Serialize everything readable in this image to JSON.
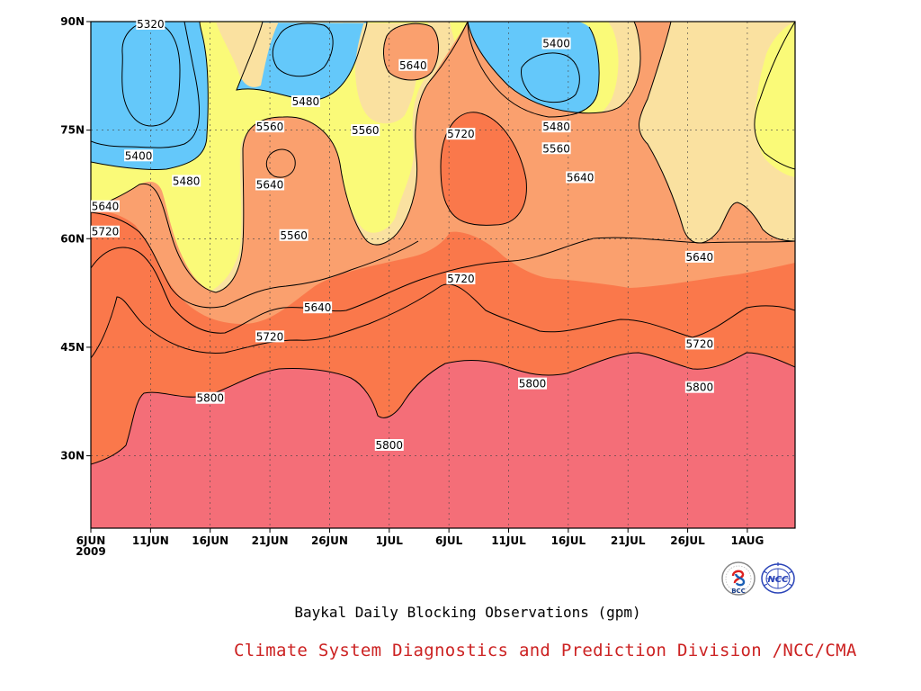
{
  "chart_data": {
    "type": "heatmap",
    "title": "Baykal Daily Blocking Observations (gpm)",
    "x_axis": {
      "tick_labels": [
        "6JUN",
        "11JUN",
        "16JUN",
        "21JUN",
        "26JUN",
        "1JUL",
        "6JUL",
        "11JUL",
        "16JUL",
        "21JUL",
        "26JUL",
        "1AUG"
      ],
      "year_label": "2009",
      "range": [
        "2009-06-06",
        "2009-08-04"
      ]
    },
    "y_axis": {
      "tick_labels": [
        "30N",
        "45N",
        "60N",
        "75N",
        "90N"
      ],
      "tick_values": [
        30,
        45,
        60,
        75,
        90
      ],
      "range": [
        20,
        90
      ]
    },
    "contour_levels": [
      5320,
      5400,
      5480,
      5560,
      5640,
      5720,
      5800
    ],
    "band_colors": {
      "below_5320": "#4646e6",
      "5320_5400": "#5a91de",
      "5400_5480": "#64c8fa",
      "5480_5560": "#fafa78",
      "5560_5640": "#fae1a0",
      "5640_5720": "#faa06e",
      "5720_5800": "#fa784b",
      "above_5800": "#f46e78"
    },
    "contour_labels": [
      {
        "text": "5320",
        "date": "2009-06-11",
        "lat": 90
      },
      {
        "text": "5400",
        "date": "2009-06-10",
        "lat": 71.5
      },
      {
        "text": "5480",
        "date": "2009-06-14",
        "lat": 68
      },
      {
        "text": "5640",
        "date": "2009-06-06",
        "lat": 64.5
      },
      {
        "text": "5720",
        "date": "2009-06-06",
        "lat": 61
      },
      {
        "text": "5480",
        "date": "2009-06-24",
        "lat": 79
      },
      {
        "text": "5560",
        "date": "2009-06-21",
        "lat": 75.5
      },
      {
        "text": "5640",
        "date": "2009-06-21",
        "lat": 67.5
      },
      {
        "text": "5560",
        "date": "2009-06-23",
        "lat": 60.5
      },
      {
        "text": "5640",
        "date": "2009-06-25",
        "lat": 50.5
      },
      {
        "text": "5720",
        "date": "2009-06-21",
        "lat": 46.5
      },
      {
        "text": "5800",
        "date": "2009-06-16",
        "lat": 38
      },
      {
        "text": "5560",
        "date": "2009-06-29",
        "lat": 75
      },
      {
        "text": "5640",
        "date": "2009-07-03",
        "lat": 84
      },
      {
        "text": "5800",
        "date": "2009-07-01",
        "lat": 31.5
      },
      {
        "text": "5720",
        "date": "2009-07-07",
        "lat": 74.5
      },
      {
        "text": "5720",
        "date": "2009-07-07",
        "lat": 54.5
      },
      {
        "text": "5400",
        "date": "2009-07-15",
        "lat": 87
      },
      {
        "text": "5480",
        "date": "2009-07-15",
        "lat": 75.5
      },
      {
        "text": "5560",
        "date": "2009-07-15",
        "lat": 72.5
      },
      {
        "text": "5640",
        "date": "2009-07-17",
        "lat": 68.5
      },
      {
        "text": "5800",
        "date": "2009-07-13",
        "lat": 40
      },
      {
        "text": "5640",
        "date": "2009-07-27",
        "lat": 57.5
      },
      {
        "text": "5720",
        "date": "2009-07-27",
        "lat": 45.5
      },
      {
        "text": "5800",
        "date": "2009-07-27",
        "lat": 39.5
      }
    ]
  },
  "credit": "Climate System Diagnostics and Prediction Division /NCC/CMA",
  "logos": {
    "left": {
      "text": "BCC",
      "icon": "bcc-logo-icon"
    },
    "right": {
      "text": "NCC",
      "icon": "ncc-logo-icon"
    }
  }
}
